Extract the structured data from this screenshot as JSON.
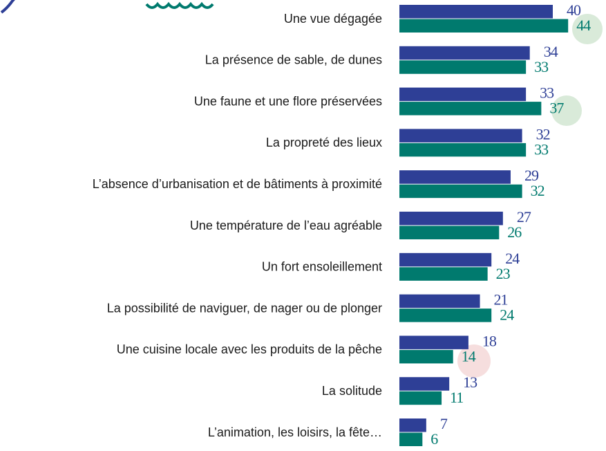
{
  "chart_data": {
    "type": "bar",
    "orientation": "horizontal",
    "categories": [
      "Une vue dégagée",
      "La présence de sable, de dunes",
      "Une faune et une flore préservées",
      "La propreté des lieux",
      "L’absence d’urbanisation et de bâtiments à proximité",
      "Une température de l’eau agréable",
      "Un fort ensoleillement",
      "La possibilité de naviguer, de nager ou de plonger",
      "Une cuisine locale avec les produits de la pêche",
      "La solitude",
      "L’animation, les loisirs, la fête…"
    ],
    "series": [
      {
        "color": "#2e3f96",
        "values": [
          40,
          34,
          33,
          32,
          29,
          27,
          24,
          21,
          18,
          13,
          7
        ]
      },
      {
        "color": "#007a6e",
        "values": [
          44,
          33,
          37,
          33,
          32,
          26,
          23,
          24,
          14,
          11,
          6
        ]
      }
    ]
  }
}
